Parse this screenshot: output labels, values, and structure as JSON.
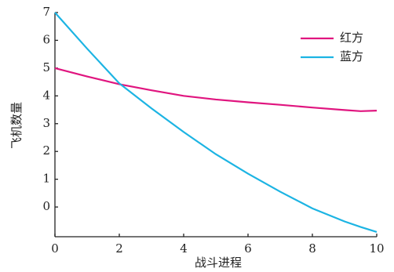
{
  "chart_data": {
    "type": "line",
    "xlabel": "战斗进程",
    "ylabel": "飞机数量",
    "x": [
      0,
      1,
      2,
      3,
      4,
      5,
      6,
      7,
      8,
      9,
      9.5,
      10
    ],
    "series": [
      {
        "name": "红方",
        "color": "#e0157f",
        "values": [
          5.0,
          4.7,
          4.42,
          4.2,
          4.0,
          3.87,
          3.77,
          3.68,
          3.58,
          3.49,
          3.45,
          3.47
        ]
      },
      {
        "name": "蓝方",
        "color": "#1cb4e3",
        "values": [
          7.0,
          5.7,
          4.45,
          3.55,
          2.7,
          1.9,
          1.2,
          0.55,
          -0.05,
          -0.52,
          -0.72,
          -0.9
        ]
      }
    ],
    "xlim": [
      0,
      10
    ],
    "xticks": [
      0,
      2,
      4,
      6,
      8,
      10
    ],
    "ylim": [
      -1.07,
      7
    ],
    "yticks": [
      0,
      1,
      2,
      3,
      4,
      5,
      6,
      7
    ],
    "legend": "upper right",
    "grid": false
  }
}
